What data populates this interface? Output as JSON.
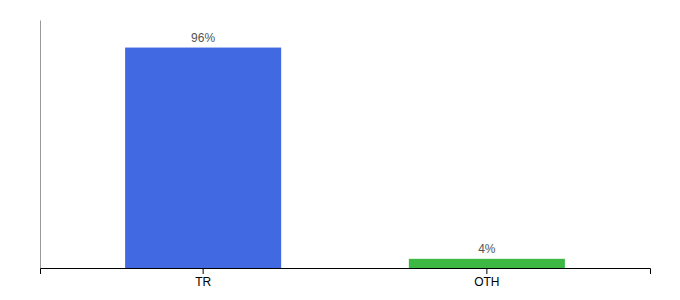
{
  "chart_data": {
    "type": "bar",
    "categories": [
      "TR",
      "OTH"
    ],
    "values": [
      96,
      4
    ],
    "colors": [
      "#4169e1",
      "#3cb843"
    ],
    "value_labels": [
      "96%",
      "4%"
    ],
    "data_labels": true,
    "ylim": [
      0,
      108
    ],
    "tick_labels": "x"
  }
}
